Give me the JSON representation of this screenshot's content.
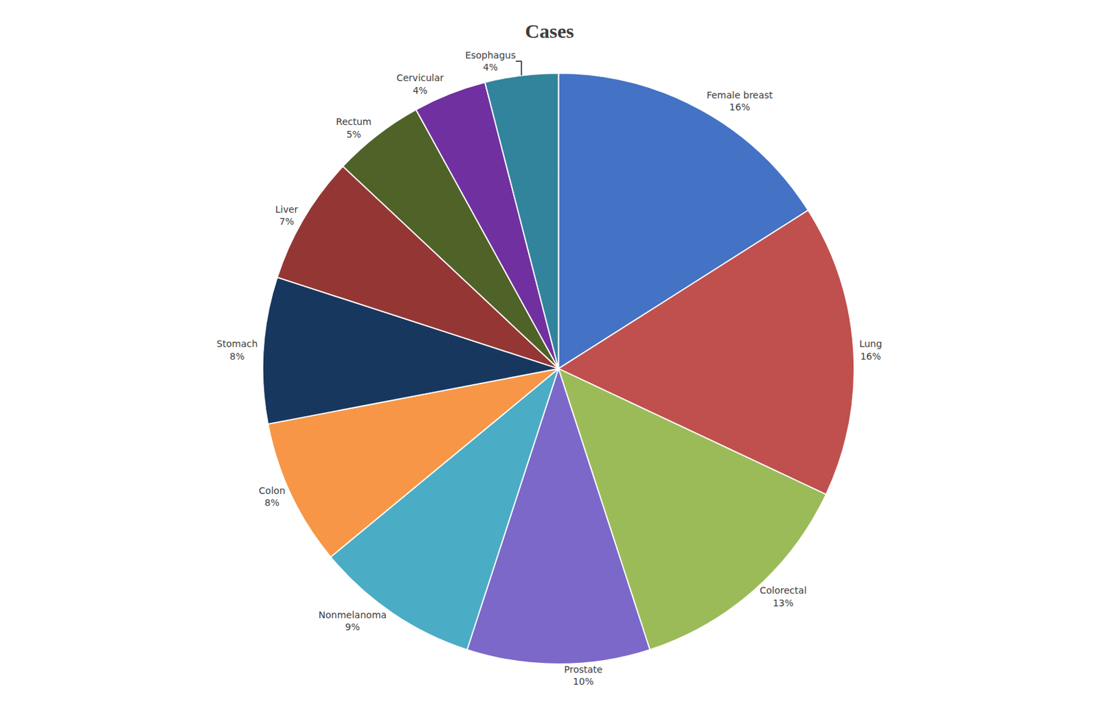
{
  "chart_data": {
    "type": "pie",
    "title": "Cases",
    "categories": [
      "Female breast",
      "Lung",
      "Colorectal",
      "Prostate",
      "Nonmelanoma",
      "Colon",
      "Stomach",
      "Liver",
      "Rectum",
      "Cervicular",
      "Esophagus"
    ],
    "values": [
      16,
      16,
      13,
      10,
      9,
      8,
      8,
      7,
      5,
      4,
      4
    ],
    "value_labels": [
      "16%",
      "16%",
      "13%",
      "10%",
      "9%",
      "8%",
      "8%",
      "7%",
      "5%",
      "4%",
      "4%"
    ],
    "colors": [
      "#4472C4",
      "#C0504D",
      "#9BBB59",
      "#7B68C8",
      "#4BACC6",
      "#F79646",
      "#17375E",
      "#943634",
      "#4F6228",
      "#7030A0",
      "#31849B"
    ],
    "data_labels": true
  }
}
